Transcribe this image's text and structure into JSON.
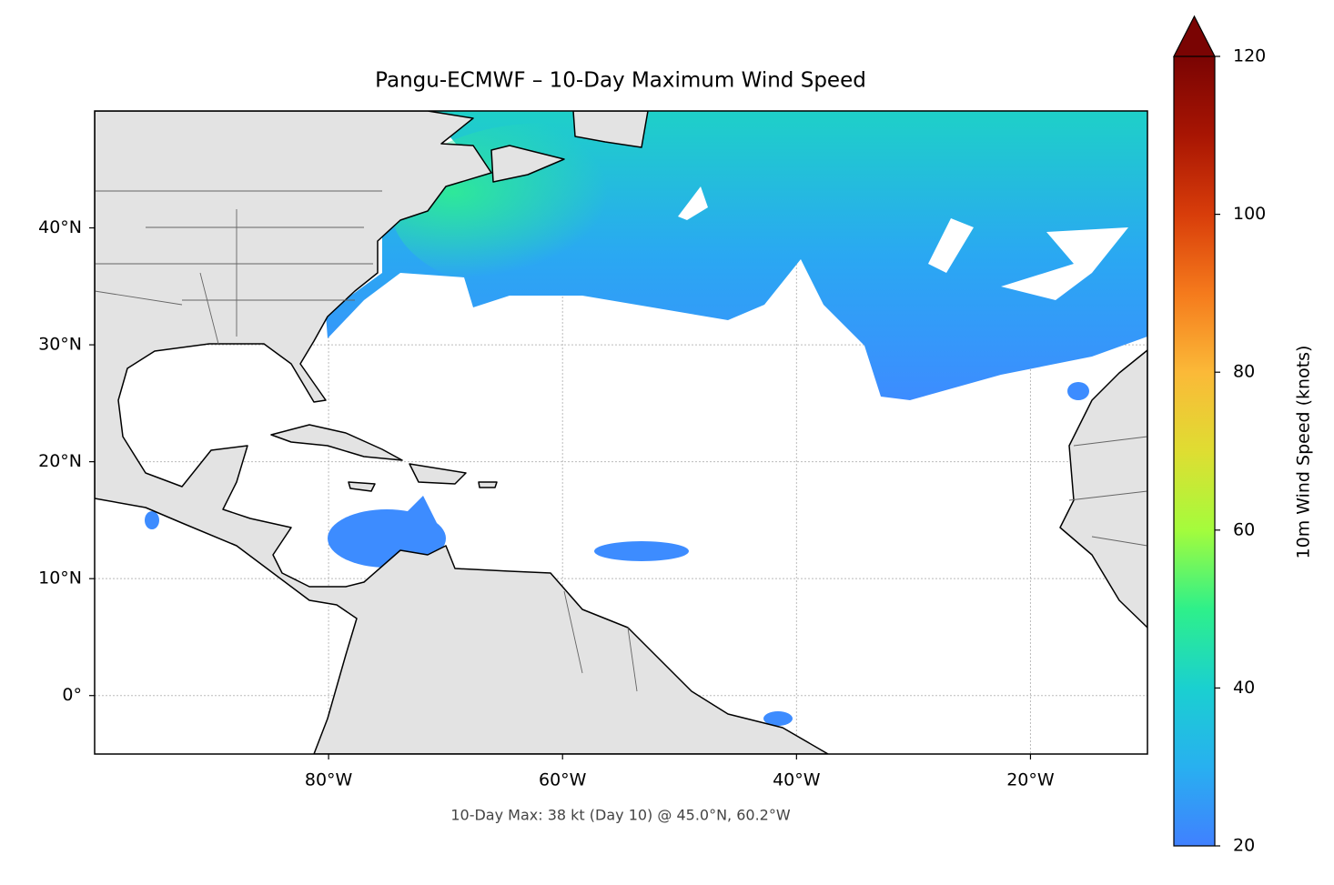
{
  "chart_data": {
    "type": "map",
    "title": "Pangu-ECMWF – 10-Day Maximum Wind Speed",
    "annotation": "10-Day Max: 38 kt (Day 10) @ 45.0°N, 60.2°W",
    "xlim": [
      -100,
      -10
    ],
    "ylim": [
      -5,
      50
    ],
    "xticks": [
      {
        "value": -80,
        "label": "80°W"
      },
      {
        "value": -60,
        "label": "60°W"
      },
      {
        "value": -40,
        "label": "40°W"
      },
      {
        "value": -20,
        "label": "20°W"
      }
    ],
    "yticks": [
      {
        "value": 0,
        "label": "0°"
      },
      {
        "value": 10,
        "label": "10°N"
      },
      {
        "value": 20,
        "label": "20°N"
      },
      {
        "value": 30,
        "label": "30°N"
      },
      {
        "value": 40,
        "label": "40°N"
      }
    ],
    "grid": true,
    "colorbar": {
      "label": "10m Wind Speed (knots)",
      "lim": [
        20,
        120
      ],
      "ticks": [
        20,
        40,
        60,
        80,
        100,
        120
      ],
      "extend": "max",
      "colors": [
        "#4080ff",
        "#28b0f0",
        "#1ad0d0",
        "#2ef08a",
        "#a4fc3c",
        "#dfdd32",
        "#fbb938",
        "#f57a1c",
        "#d83d0a",
        "#a81503",
        "#7a0403"
      ]
    }
  }
}
